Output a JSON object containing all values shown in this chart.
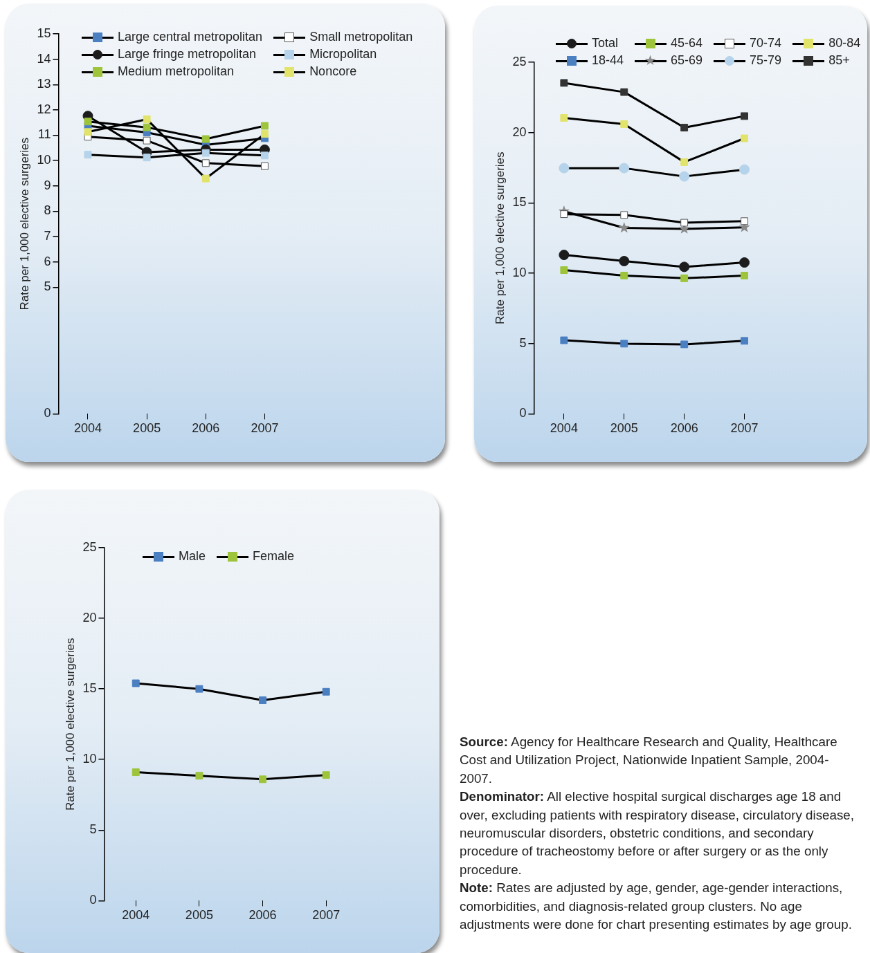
{
  "chart_data": [
    {
      "type": "line",
      "categories": [
        "2004",
        "2005",
        "2006",
        "2007"
      ],
      "ylabel": "Rate per 1,000 elective surgeries",
      "ylim": [
        0,
        15
      ],
      "yticks": [
        0,
        5,
        6,
        7,
        8,
        9,
        10,
        11,
        12,
        13,
        14,
        15
      ],
      "grid": false,
      "legend": "top",
      "series": [
        {
          "name": "Large central metropolitan",
          "color": "#4a7fc1",
          "marker": "square",
          "values": [
            11.37,
            11.11,
            10.62,
            10.88
          ]
        },
        {
          "name": "Large fringe metropolitan",
          "color": "#1c1c1c",
          "marker": "circle",
          "values": [
            11.76,
            10.33,
            10.43,
            10.43
          ]
        },
        {
          "name": "Medium metropolitan",
          "color": "#9dc43a",
          "marker": "square",
          "values": [
            11.54,
            11.31,
            10.85,
            11.37
          ]
        },
        {
          "name": "Small metropolitan",
          "color": "#ffffff",
          "marker": "square",
          "values": [
            10.94,
            10.79,
            9.9,
            9.78
          ]
        },
        {
          "name": "Micropolitan",
          "color": "#b5d3ea",
          "marker": "square",
          "values": [
            10.23,
            10.12,
            10.3,
            10.2
          ]
        },
        {
          "name": "Noncore",
          "color": "#e1e36a",
          "marker": "square",
          "values": [
            11.13,
            11.63,
            9.29,
            11.05
          ]
        }
      ]
    },
    {
      "type": "line",
      "categories": [
        "2004",
        "2005",
        "2006",
        "2007"
      ],
      "ylabel": "Rate per 1,000 elective surgeries",
      "ylim": [
        0,
        25
      ],
      "yticks": [
        0,
        5,
        10,
        15,
        20,
        25
      ],
      "grid": false,
      "legend": "top",
      "series": [
        {
          "name": "Total",
          "color": "#1c1c1c",
          "marker": "circle",
          "values": [
            11.3,
            10.86,
            10.45,
            10.76
          ]
        },
        {
          "name": "18-44",
          "color": "#4a7fc1",
          "marker": "square",
          "values": [
            5.23,
            4.99,
            4.94,
            5.19
          ]
        },
        {
          "name": "45-64",
          "color": "#9dc43a",
          "marker": "square",
          "values": [
            10.22,
            9.83,
            9.64,
            9.83
          ]
        },
        {
          "name": "65-69",
          "color": "#8a8a8a",
          "marker": "star",
          "values": [
            14.4,
            13.22,
            13.15,
            13.26
          ]
        },
        {
          "name": "70-74",
          "color": "#ffffff",
          "marker": "square",
          "values": [
            14.2,
            14.14,
            13.59,
            13.7
          ]
        },
        {
          "name": "75-79",
          "color": "#b5d3ea",
          "marker": "circle",
          "values": [
            17.47,
            17.47,
            16.88,
            17.37
          ]
        },
        {
          "name": "80-84",
          "color": "#e1e36a",
          "marker": "square",
          "values": [
            21.04,
            20.6,
            17.9,
            19.59
          ]
        },
        {
          "name": "85+",
          "color": "#333333",
          "marker": "square",
          "values": [
            23.53,
            22.88,
            20.35,
            21.17
          ]
        }
      ]
    },
    {
      "type": "line",
      "categories": [
        "2004",
        "2005",
        "2006",
        "2007"
      ],
      "ylabel": "Rate per 1,000 elective surgeries",
      "ylim": [
        0,
        25
      ],
      "yticks": [
        0,
        5,
        10,
        15,
        20,
        25
      ],
      "grid": false,
      "legend": "top",
      "series": [
        {
          "name": "Male",
          "color": "#4a7fc1",
          "marker": "square",
          "values": [
            15.4,
            15.0,
            14.2,
            14.8
          ]
        },
        {
          "name": "Female",
          "color": "#9dc43a",
          "marker": "square",
          "values": [
            9.1,
            8.85,
            8.6,
            8.9
          ]
        }
      ],
      "annotations": [
        "Source: Agency for Healthcare Research and Quality, Healthcare Cost and Utilization Project, Nationwide Inpatient Sample, 2004-2007.",
        "Denominator: All elective hospital surgical discharges age 18 and over, excluding patients with respiratory disease, circulatory disease, neuromuscular disorders, obstetric conditions, and secondary procedure of tracheostomy before or after surgery or as the only procedure.",
        "Note: Rates are adjusted by age, gender, age-gender interactions, comorbidities, and diagnosis-related group clusters. No age adjustments were done for chart presenting estimates by age group."
      ]
    }
  ]
}
